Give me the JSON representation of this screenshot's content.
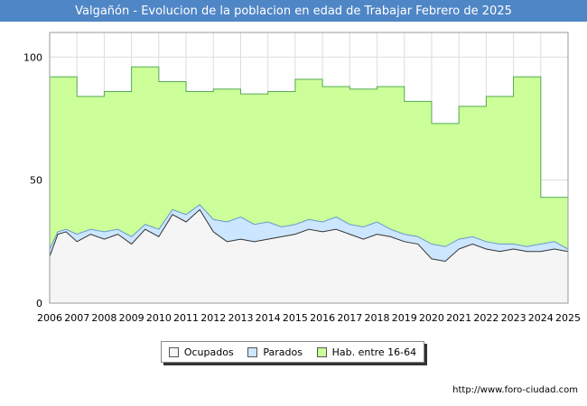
{
  "header": {
    "title": "Valgañón - Evolucion de la poblacion en edad de Trabajar Febrero de 2025"
  },
  "footer": {
    "url": "http://www.foro-ciudad.com"
  },
  "colors": {
    "title_bg": "#4f86c6",
    "hab": "#ccff99",
    "parados": "#cce6ff",
    "ocupados": "#f5f5f5",
    "hab_line": "#55aa55",
    "parados_line": "#6699cc",
    "ocupados_line": "#333333"
  },
  "chart_data": {
    "type": "area",
    "title": "Valgañón - Evolucion de la poblacion en edad de Trabajar Febrero de 2025",
    "xlabel": "",
    "ylabel": "",
    "xlim": [
      2006,
      2025
    ],
    "ylim": [
      0,
      110
    ],
    "x_ticks": [
      "2006",
      "2007",
      "2008",
      "2009",
      "2010",
      "2011",
      "2012",
      "2013",
      "2014",
      "2015",
      "2016",
      "2017",
      "2018",
      "2019",
      "2020",
      "2021",
      "2022",
      "2023",
      "2024",
      "2025"
    ],
    "y_ticks": [
      0,
      50,
      100
    ],
    "grid": true,
    "legend_position": "bottom-center",
    "legend": [
      "Ocupados",
      "Parados",
      "Hab. entre 16-64"
    ],
    "series": [
      {
        "name": "Hab. entre 16-64",
        "step": true,
        "years": [
          2006,
          2007,
          2008,
          2009,
          2010,
          2011,
          2012,
          2013,
          2014,
          2015,
          2016,
          2017,
          2018,
          2019,
          2020,
          2021,
          2022,
          2023,
          2024
        ],
        "values": [
          92,
          84,
          86,
          96,
          90,
          86,
          87,
          85,
          86,
          91,
          88,
          87,
          88,
          82,
          73,
          80,
          84,
          92,
          43
        ]
      },
      {
        "name": "Parados",
        "x": [
          2006.0,
          2006.3,
          2006.6,
          2007.0,
          2007.5,
          2008.0,
          2008.5,
          2009.0,
          2009.5,
          2010.0,
          2010.5,
          2011.0,
          2011.5,
          2012.0,
          2012.5,
          2013.0,
          2013.5,
          2014.0,
          2014.5,
          2015.0,
          2015.5,
          2016.0,
          2016.5,
          2017.0,
          2017.5,
          2018.0,
          2018.5,
          2019.0,
          2019.5,
          2020.0,
          2020.5,
          2021.0,
          2021.5,
          2022.0,
          2022.5,
          2023.0,
          2023.5,
          2024.0,
          2024.5,
          2025.0
        ],
        "values": [
          22,
          29,
          30,
          28,
          30,
          29,
          30,
          27,
          32,
          30,
          38,
          36,
          40,
          34,
          33,
          35,
          32,
          33,
          31,
          32,
          34,
          33,
          35,
          32,
          31,
          33,
          30,
          28,
          27,
          24,
          23,
          26,
          27,
          25,
          24,
          24,
          23,
          24,
          25,
          22
        ]
      },
      {
        "name": "Ocupados",
        "x": [
          2006.0,
          2006.3,
          2006.6,
          2007.0,
          2007.5,
          2008.0,
          2008.5,
          2009.0,
          2009.5,
          2010.0,
          2010.5,
          2011.0,
          2011.5,
          2012.0,
          2012.5,
          2013.0,
          2013.5,
          2014.0,
          2014.5,
          2015.0,
          2015.5,
          2016.0,
          2016.5,
          2017.0,
          2017.5,
          2018.0,
          2018.5,
          2019.0,
          2019.5,
          2020.0,
          2020.5,
          2021.0,
          2021.5,
          2022.0,
          2022.5,
          2023.0,
          2023.5,
          2024.0,
          2024.5,
          2025.0
        ],
        "values": [
          19,
          28,
          29,
          25,
          28,
          26,
          28,
          24,
          30,
          27,
          36,
          33,
          38,
          29,
          25,
          26,
          25,
          26,
          27,
          28,
          30,
          29,
          30,
          28,
          26,
          28,
          27,
          25,
          24,
          18,
          17,
          22,
          24,
          22,
          21,
          22,
          21,
          21,
          22,
          21
        ]
      }
    ]
  }
}
